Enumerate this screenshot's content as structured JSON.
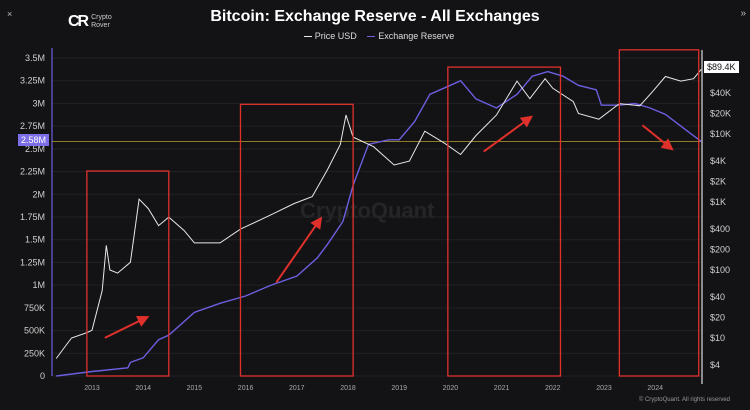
{
  "window": {
    "close_icon": "×",
    "expand_icon": "»"
  },
  "logo": {
    "line1": "Crypto",
    "line2": "Rover",
    "mark": "CR"
  },
  "watermark": "CryptoQuant",
  "copyright": "© CryptoQuant. All rights reserved",
  "colors": {
    "price": "#e8e8e8",
    "reserve": "#6c5fe0",
    "boxes": "#e0302b",
    "arrows": "#e0302b",
    "level_line": "#b8a030",
    "background": "#131315"
  },
  "chart_data": {
    "type": "line",
    "title": "Bitcoin: Exchange Reserve - All Exchanges",
    "legend": [
      "Price USD",
      "Exchange Reserve"
    ],
    "legend_placement": "top-center",
    "x_ticks": [
      "2013",
      "2014",
      "2015",
      "2016",
      "2017",
      "2018",
      "2019",
      "2020",
      "2021",
      "2022",
      "2023",
      "2024"
    ],
    "xlim": [
      2012.2,
      2025.0
    ],
    "left_axis": {
      "ticks": [
        "0",
        "250K",
        "500K",
        "750K",
        "1M",
        "1.25M",
        "1.5M",
        "1.75M",
        "2M",
        "2.25M",
        "2.5M",
        "2.75M",
        "3M",
        "3.25M",
        "3.5M"
      ],
      "ylim": [
        0,
        3500000
      ],
      "current_label": "2.58M",
      "current_value": 2580000
    },
    "right_axis": {
      "scale": "log",
      "ticks": [
        {
          "label": "$4",
          "v": 4
        },
        {
          "label": "$10",
          "v": 10
        },
        {
          "label": "$20",
          "v": 20
        },
        {
          "label": "$40",
          "v": 40
        },
        {
          "label": "$100",
          "v": 100
        },
        {
          "label": "$200",
          "v": 200
        },
        {
          "label": "$400",
          "v": 400
        },
        {
          "label": "$1K",
          "v": 1000
        },
        {
          "label": "$2K",
          "v": 2000
        },
        {
          "label": "$4K",
          "v": 4000
        },
        {
          "label": "$10K",
          "v": 10000
        },
        {
          "label": "$20K",
          "v": 20000
        },
        {
          "label": "$40K",
          "v": 40000
        }
      ],
      "current_label": "$89.4K",
      "current_value": 89400
    },
    "grid": "horizontal",
    "series": [
      {
        "name": "Price USD",
        "axis": "right",
        "x": [
          2012.3,
          2012.6,
          2012.9,
          2013.0,
          2013.2,
          2013.28,
          2013.35,
          2013.5,
          2013.75,
          2013.92,
          2014.1,
          2014.3,
          2014.5,
          2014.8,
          2015.0,
          2015.5,
          2015.9,
          2016.5,
          2016.95,
          2017.3,
          2017.6,
          2017.85,
          2017.96,
          2018.1,
          2018.5,
          2018.9,
          2019.2,
          2019.5,
          2019.9,
          2020.2,
          2020.5,
          2020.9,
          2021.3,
          2021.55,
          2021.85,
          2022.0,
          2022.4,
          2022.5,
          2022.9,
          2023.3,
          2023.7,
          2023.95,
          2024.2,
          2024.5,
          2024.75,
          2024.9
        ],
        "values": [
          5,
          10,
          12,
          13,
          50,
          230,
          100,
          90,
          130,
          1100,
          800,
          450,
          600,
          380,
          250,
          250,
          400,
          650,
          950,
          1200,
          3000,
          7000,
          19000,
          9000,
          6500,
          3500,
          4000,
          11000,
          7200,
          5000,
          9500,
          19000,
          60000,
          33000,
          65000,
          47000,
          30000,
          20000,
          16500,
          28000,
          26000,
          42000,
          70000,
          60000,
          65000,
          89400
        ]
      },
      {
        "name": "Exchange Reserve",
        "axis": "left",
        "x": [
          2012.3,
          2013.0,
          2013.2,
          2013.7,
          2013.75,
          2014.0,
          2014.3,
          2014.5,
          2015.0,
          2015.5,
          2016.0,
          2016.5,
          2017.0,
          2017.4,
          2017.6,
          2017.9,
          2018.1,
          2018.4,
          2018.8,
          2019.0,
          2019.3,
          2019.6,
          2020.0,
          2020.2,
          2020.5,
          2020.9,
          2021.3,
          2021.6,
          2021.9,
          2022.2,
          2022.5,
          2022.85,
          2022.95,
          2023.3,
          2023.6,
          2023.9,
          2024.2,
          2024.5,
          2024.9
        ],
        "values": [
          0,
          50000,
          60000,
          90000,
          150000,
          200000,
          400000,
          450000,
          700000,
          800000,
          880000,
          1000000,
          1100000,
          1300000,
          1450000,
          1700000,
          2100000,
          2550000,
          2600000,
          2600000,
          2800000,
          3100000,
          3200000,
          3250000,
          3050000,
          2950000,
          3100000,
          3300000,
          3350000,
          3300000,
          3200000,
          3150000,
          2980000,
          2980000,
          3000000,
          2950000,
          2880000,
          2750000,
          2580000
        ]
      }
    ],
    "annotations": {
      "boxes": [
        {
          "x0": 2012.9,
          "x1": 2014.5,
          "top": 2256000
        },
        {
          "x0": 2015.9,
          "x1": 2018.1,
          "top": 2990000
        },
        {
          "x0": 2019.95,
          "x1": 2022.15,
          "top": 3400000
        },
        {
          "x0": 2023.3,
          "x1": 2024.85,
          "top": 3590000
        }
      ],
      "arrows": [
        {
          "from": [
            2013.25,
            420000
          ],
          "to": [
            2014.05,
            640000
          ]
        },
        {
          "from": [
            2016.6,
            1030000
          ],
          "to": [
            2017.45,
            1720000
          ]
        },
        {
          "from": [
            2020.65,
            2470000
          ],
          "to": [
            2021.55,
            2840000
          ]
        },
        {
          "from": [
            2023.75,
            2760000
          ],
          "to": [
            2024.3,
            2510000
          ]
        }
      ]
    }
  }
}
